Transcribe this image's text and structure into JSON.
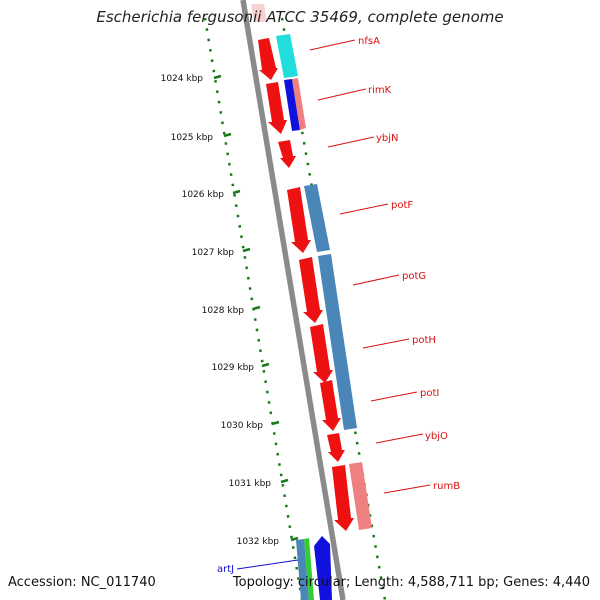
{
  "title": "Escherichia fergusonii ATCC 35469, complete genome",
  "footer": {
    "accession": "Accession: NC_011740",
    "topology": "Topology: circular; Length: 4,588,711 bp; Genes: 4,440"
  },
  "colors": {
    "backbone": "#8a8a8a",
    "scale_dots": "#1a7a1a",
    "feature_line": "#d81010",
    "feature_text": "#d81010",
    "feature_text_blue": "#1010cc",
    "gene_red": "#ee1111",
    "gene_steel": "#4a86b8",
    "gene_cyan": "#22dddd",
    "gene_blue": "#1111dd",
    "gene_pink": "#ef8080",
    "gene_green": "#33cc33"
  },
  "scale_labels": [
    "1024 kbp",
    "1025 kbp",
    "1026 kbp",
    "1027 kbp",
    "1028 kbp",
    "1029 kbp",
    "1030 kbp",
    "1031 kbp",
    "1032 kbp"
  ],
  "features": [
    {
      "name": "nfsA",
      "color": "red"
    },
    {
      "name": "rimK",
      "color": "red"
    },
    {
      "name": "ybjN",
      "color": "red"
    },
    {
      "name": "potF",
      "color": "red"
    },
    {
      "name": "potG",
      "color": "red"
    },
    {
      "name": "potH",
      "color": "red"
    },
    {
      "name": "potI",
      "color": "red"
    },
    {
      "name": "ybjO",
      "color": "red"
    },
    {
      "name": "rumB",
      "color": "red"
    },
    {
      "name": "artJ",
      "color": "blue"
    }
  ]
}
